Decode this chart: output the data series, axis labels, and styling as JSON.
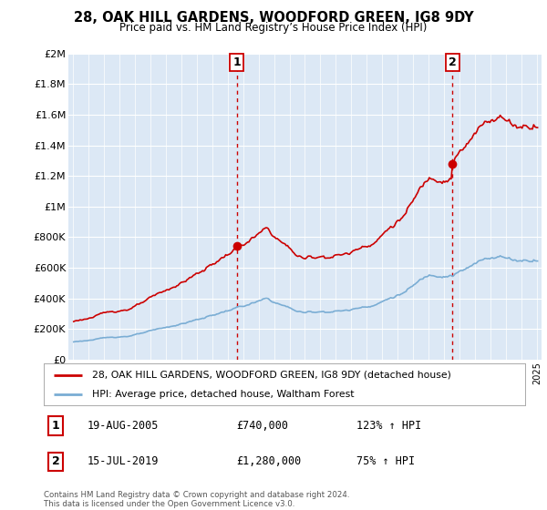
{
  "title": "28, OAK HILL GARDENS, WOODFORD GREEN, IG8 9DY",
  "subtitle": "Price paid vs. HM Land Registry’s House Price Index (HPI)",
  "legend_line1": "28, OAK HILL GARDENS, WOODFORD GREEN, IG8 9DY (detached house)",
  "legend_line2": "HPI: Average price, detached house, Waltham Forest",
  "table_row1_num": "1",
  "table_row1_date": "19-AUG-2005",
  "table_row1_price": "£740,000",
  "table_row1_hpi": "123% ↑ HPI",
  "table_row2_num": "2",
  "table_row2_date": "15-JUL-2019",
  "table_row2_price": "£1,280,000",
  "table_row2_hpi": "75% ↑ HPI",
  "footer": "Contains HM Land Registry data © Crown copyright and database right 2024.\nThis data is licensed under the Open Government Licence v3.0.",
  "hpi_color": "#7aadd4",
  "sale_color": "#cc0000",
  "plot_bg_color": "#dce8f5",
  "background_color": "#ffffff",
  "ylim": [
    0,
    2000000
  ],
  "yticks": [
    0,
    200000,
    400000,
    600000,
    800000,
    1000000,
    1200000,
    1400000,
    1600000,
    1800000,
    2000000
  ],
  "sale1_x": 2005.6,
  "sale1_y": 740000,
  "sale2_x": 2019.55,
  "sale2_y": 1280000,
  "xmin": 1995,
  "xmax": 2025
}
